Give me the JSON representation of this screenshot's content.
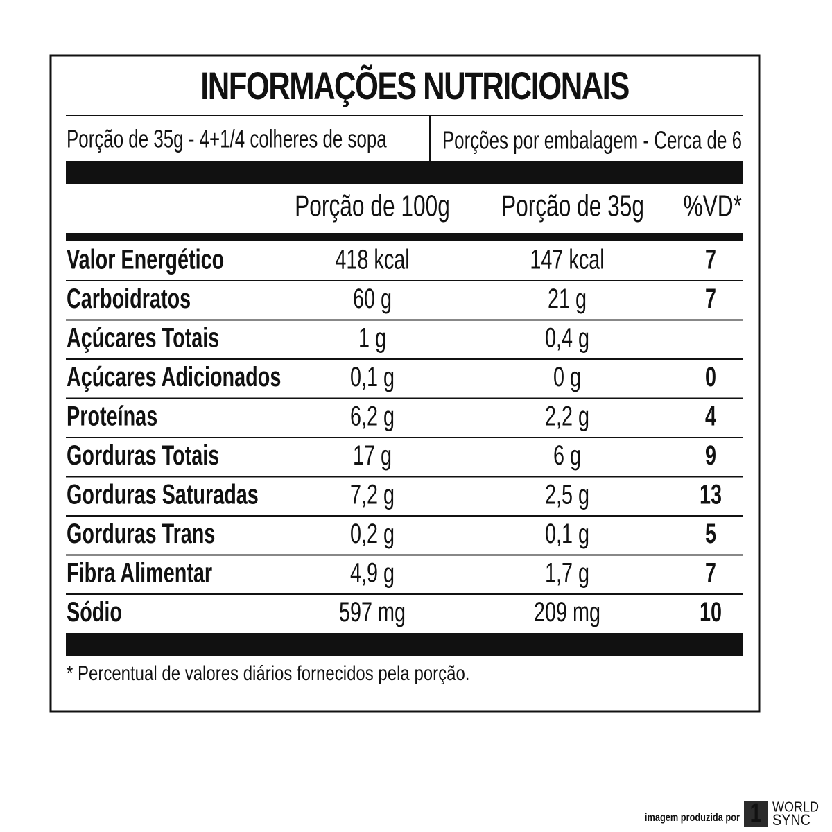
{
  "header": {
    "title": "INFORMAÇÕES NUTRICIONAIS"
  },
  "serving": {
    "portion": "Porção de 35g  - 4+1/4 colheres de sopa",
    "per_package": "Porções por embalagem - Cerca de 6"
  },
  "table": {
    "columns": [
      "Porção de 100g",
      "Porção de 35g",
      "%VD*"
    ],
    "rows": [
      [
        "Valor Energético",
        "418 kcal",
        "147 kcal",
        "7"
      ],
      [
        "Carboidratos",
        "60 g",
        "21 g",
        "7"
      ],
      [
        "Açúcares Totais",
        "1 g",
        "0,4 g",
        null
      ],
      [
        "Açúcares Adicionados",
        "0,1 g",
        "0 g",
        "0"
      ],
      [
        "Proteínas",
        "6,2 g",
        "2,2 g",
        "4"
      ],
      [
        "Gorduras Totais",
        "17 g",
        "6 g",
        "9"
      ],
      [
        "Gorduras Saturadas",
        "7,2 g",
        "2,5 g",
        "13"
      ],
      [
        "Gorduras Trans",
        "0,2 g",
        "0,1 g",
        "5"
      ],
      [
        "Fibra Alimentar",
        "4,9 g",
        "1,7 g",
        "7"
      ],
      [
        "Sódio",
        "597 mg",
        "209 mg",
        "10"
      ]
    ]
  },
  "footnote": "* Percentual de valores diários fornecidos pela porção.",
  "credit": {
    "text": "imagem produzida por",
    "logo_number": "1",
    "logo_line1": "WORLD",
    "logo_line2": "SYNC"
  }
}
